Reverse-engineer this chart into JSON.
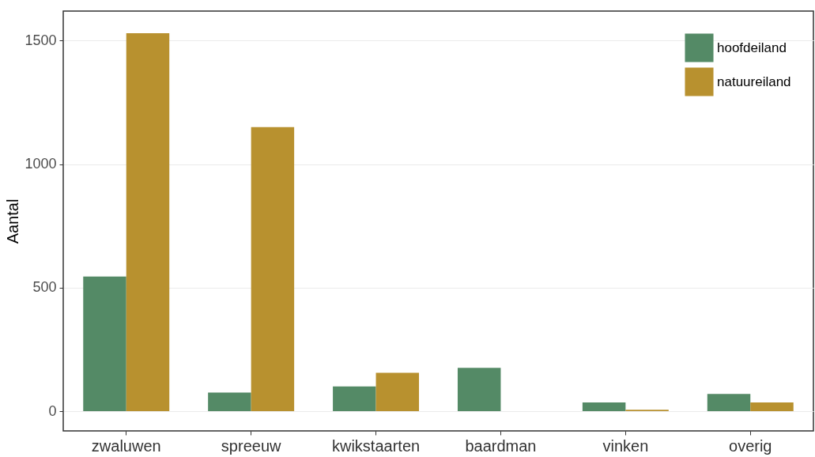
{
  "chart_data": {
    "type": "bar",
    "ylabel": "Aantal",
    "categories": [
      "zwaluwen",
      "spreeuw",
      "kwikstaarten",
      "baardman",
      "vinken",
      "overig"
    ],
    "series": [
      {
        "name": "hoofdeiland",
        "color": "#548a66",
        "values": [
          545,
          75,
          100,
          175,
          35,
          70
        ]
      },
      {
        "name": "natuureiland",
        "color": "#b8912f",
        "values": [
          1530,
          1150,
          155,
          0,
          6,
          35
        ]
      }
    ],
    "ylim": [
      -80,
      1620
    ],
    "yticks": [
      0,
      500,
      1000,
      1500
    ],
    "grid": "y",
    "legend": "top right"
  }
}
